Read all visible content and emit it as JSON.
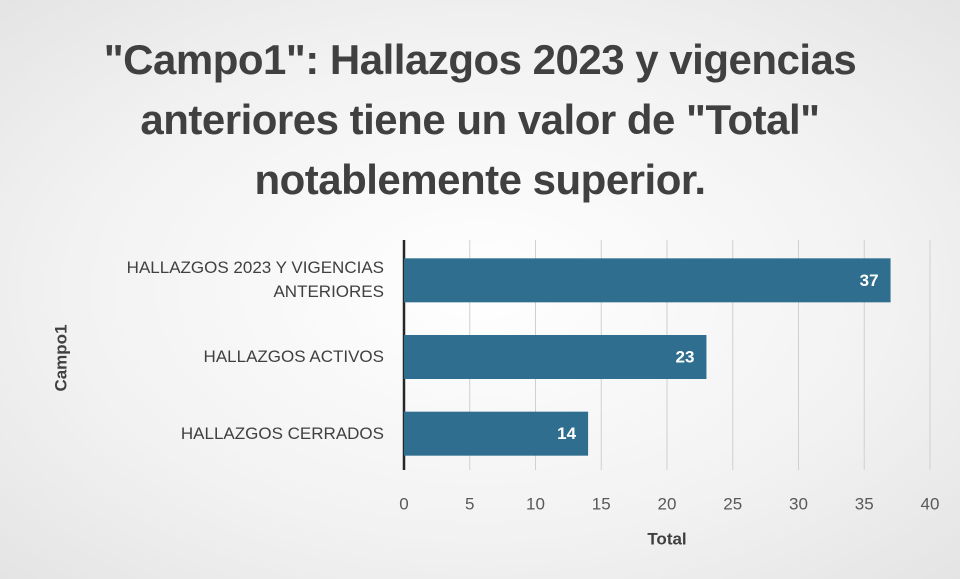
{
  "chart_data": {
    "type": "bar",
    "orientation": "horizontal",
    "title": "\"Campo1\": Hallazgos 2023 y vigencias anteriores tiene un valor de \"Total\" notablemente superior.",
    "categories": [
      "HALLAZGOS 2023 Y VIGENCIAS ANTERIORES",
      "HALLAZGOS ACTIVOS",
      "HALLAZGOS CERRADOS"
    ],
    "values": [
      37,
      23,
      14
    ],
    "color": "#2f6e8e",
    "xlim": [
      0,
      40
    ],
    "xticks": [
      0,
      5,
      10,
      15,
      20,
      25,
      30,
      35,
      40
    ],
    "x_label": "Total",
    "y_label": "Campo1",
    "grid": true
  }
}
